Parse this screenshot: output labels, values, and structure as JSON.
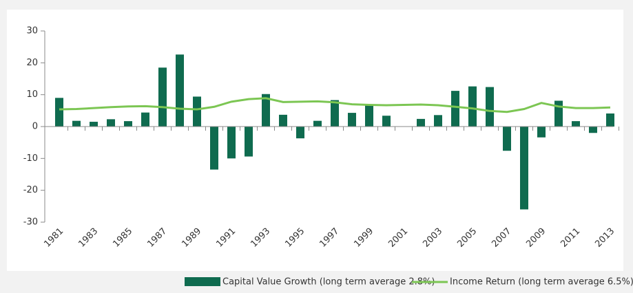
{
  "chart_data": {
    "type": "bar-line",
    "categories": [
      "1981",
      null,
      "1983",
      null,
      "1985",
      null,
      "1987",
      null,
      "1989",
      null,
      "1991",
      null,
      "1993",
      null,
      "1995",
      null,
      "1997",
      null,
      "1999",
      null,
      "2001",
      null,
      "2003",
      null,
      "2005",
      null,
      "2007",
      null,
      "2009",
      null,
      "2011",
      null,
      "2013"
    ],
    "series": [
      {
        "name": "Capital Value Growth (long term average 2.8%)",
        "kind": "bar",
        "color": "#0f6b4f",
        "values": [
          9,
          1.8,
          1.5,
          2.3,
          1.7,
          4.4,
          18.5,
          22.6,
          9.4,
          -13.5,
          -10,
          -9.4,
          10.2,
          3.7,
          -3.7,
          1.8,
          8.3,
          4.3,
          6.7,
          3.4,
          0,
          2.4,
          3.6,
          11.2,
          12.6,
          12.4,
          -7.6,
          -26,
          -3.4,
          8.1,
          1.7,
          -2,
          4.1
        ]
      },
      {
        "name": "Income Return (long term average 6.5%)",
        "kind": "line",
        "color": "#7cc653",
        "values": [
          5.4,
          5.5,
          5.8,
          6.1,
          6.3,
          6.4,
          6.1,
          5.6,
          5.4,
          6.2,
          7.8,
          8.6,
          8.9,
          7.7,
          7.8,
          7.9,
          7.6,
          7.0,
          6.8,
          6.7,
          6.8,
          6.9,
          6.7,
          6.2,
          5.7,
          4.9,
          4.6,
          5.5,
          7.4,
          6.3,
          5.8,
          5.8,
          6.0
        ]
      }
    ],
    "ylim": [
      -30,
      30
    ],
    "yticks": [
      -30,
      -20,
      -10,
      0,
      10,
      20,
      30
    ],
    "grid": false
  }
}
